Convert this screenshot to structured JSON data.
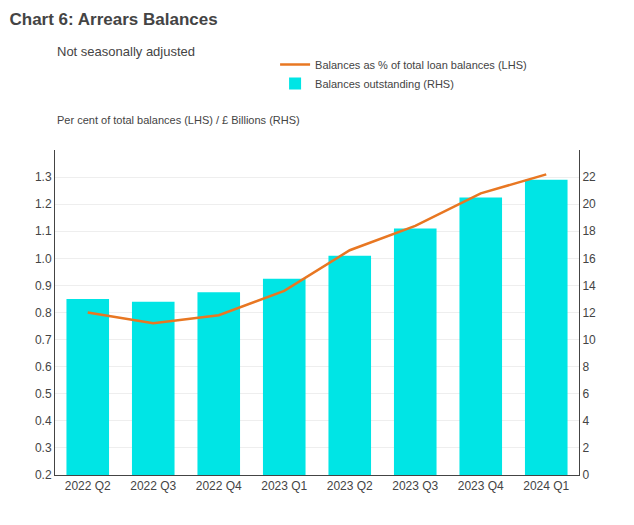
{
  "chart_data": {
    "type": "bar",
    "title": "Chart 6: Arrears Balances",
    "subtitle": "Not seasonally adjusted",
    "axis_label": "Per cent of total balances (LHS) / £ Billions (RHS)",
    "categories": [
      "2022 Q2",
      "2022 Q3",
      "2022 Q4",
      "2023 Q1",
      "2023 Q2",
      "2023 Q3",
      "2023 Q4",
      "2024 Q1"
    ],
    "series": [
      {
        "name": "Balances as % of total loan balances (LHS)",
        "type": "line",
        "color": "#E87722",
        "values": [
          0.8,
          0.76,
          0.79,
          0.88,
          1.03,
          1.12,
          1.24,
          1.31
        ]
      },
      {
        "name": "Balances outstanding (RHS)",
        "type": "bar",
        "color": "#00E5E5",
        "axis": "y2",
        "values": [
          13.0,
          12.8,
          13.5,
          14.5,
          16.2,
          18.2,
          20.5,
          21.8
        ]
      }
    ],
    "ylim": [
      0.2,
      1.4
    ],
    "yticks": [
      0.2,
      0.3,
      0.4,
      0.5,
      0.6,
      0.7,
      0.8,
      0.9,
      {
        "value": 1.0,
        "label": "1.0"
      },
      1.1,
      1.2,
      1.3
    ],
    "y2lim": [
      0,
      24
    ],
    "y2ticks": [
      0,
      2,
      4,
      6,
      8,
      10,
      12,
      14,
      16,
      18,
      20,
      22
    ],
    "grid": true,
    "legend": "top"
  }
}
